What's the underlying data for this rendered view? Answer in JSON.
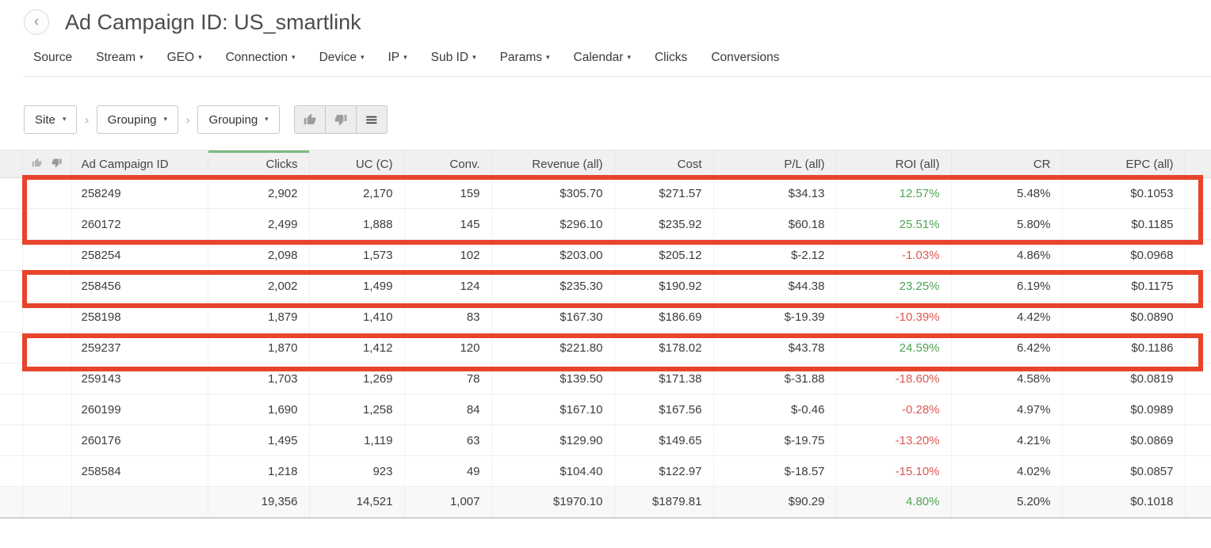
{
  "page": {
    "title": "Ad Campaign ID: US_smartlink",
    "back_icon": "‹"
  },
  "nav": {
    "items": [
      {
        "label": "Source",
        "dropdown": false
      },
      {
        "label": "Stream",
        "dropdown": true
      },
      {
        "label": "GEO",
        "dropdown": true
      },
      {
        "label": "Connection",
        "dropdown": true
      },
      {
        "label": "Device",
        "dropdown": true
      },
      {
        "label": "IP",
        "dropdown": true
      },
      {
        "label": "Sub ID",
        "dropdown": true
      },
      {
        "label": "Params",
        "dropdown": true
      },
      {
        "label": "Calendar",
        "dropdown": true
      },
      {
        "label": "Clicks",
        "dropdown": false
      },
      {
        "label": "Conversions",
        "dropdown": false
      }
    ]
  },
  "toolbar": {
    "dropdowns": [
      "Site",
      "Grouping",
      "Grouping"
    ],
    "icon_buttons": [
      "thumbs-up-icon",
      "thumbs-down-icon",
      "menu-icon"
    ]
  },
  "table": {
    "gutter_icons": [
      "thumbs-up-icon",
      "thumbs-down-icon"
    ],
    "sorted_column": "Clicks",
    "columns": [
      {
        "key": "id",
        "label": "Ad Campaign ID"
      },
      {
        "key": "clicks",
        "label": "Clicks"
      },
      {
        "key": "uc",
        "label": "UC (C)"
      },
      {
        "key": "conv",
        "label": "Conv."
      },
      {
        "key": "revenue",
        "label": "Revenue (all)"
      },
      {
        "key": "cost",
        "label": "Cost"
      },
      {
        "key": "pl",
        "label": "P/L (all)"
      },
      {
        "key": "roi",
        "label": "ROI (all)"
      },
      {
        "key": "cr",
        "label": "CR"
      },
      {
        "key": "epc",
        "label": "EPC (all)"
      }
    ],
    "rows": [
      {
        "id": "258249",
        "clicks": "2,902",
        "uc": "2,170",
        "conv": "159",
        "revenue": "$305.70",
        "cost": "$271.57",
        "pl": "$34.13",
        "roi": "12.57%",
        "cr": "5.48%",
        "epc": "$0.1053"
      },
      {
        "id": "260172",
        "clicks": "2,499",
        "uc": "1,888",
        "conv": "145",
        "revenue": "$296.10",
        "cost": "$235.92",
        "pl": "$60.18",
        "roi": "25.51%",
        "cr": "5.80%",
        "epc": "$0.1185"
      },
      {
        "id": "258254",
        "clicks": "2,098",
        "uc": "1,573",
        "conv": "102",
        "revenue": "$203.00",
        "cost": "$205.12",
        "pl": "$-2.12",
        "roi": "-1.03%",
        "cr": "4.86%",
        "epc": "$0.0968"
      },
      {
        "id": "258456",
        "clicks": "2,002",
        "uc": "1,499",
        "conv": "124",
        "revenue": "$235.30",
        "cost": "$190.92",
        "pl": "$44.38",
        "roi": "23.25%",
        "cr": "6.19%",
        "epc": "$0.1175"
      },
      {
        "id": "258198",
        "clicks": "1,879",
        "uc": "1,410",
        "conv": "83",
        "revenue": "$167.30",
        "cost": "$186.69",
        "pl": "$-19.39",
        "roi": "-10.39%",
        "cr": "4.42%",
        "epc": "$0.0890"
      },
      {
        "id": "259237",
        "clicks": "1,870",
        "uc": "1,412",
        "conv": "120",
        "revenue": "$221.80",
        "cost": "$178.02",
        "pl": "$43.78",
        "roi": "24.59%",
        "cr": "6.42%",
        "epc": "$0.1186"
      },
      {
        "id": "259143",
        "clicks": "1,703",
        "uc": "1,269",
        "conv": "78",
        "revenue": "$139.50",
        "cost": "$171.38",
        "pl": "$-31.88",
        "roi": "-18.60%",
        "cr": "4.58%",
        "epc": "$0.0819"
      },
      {
        "id": "260199",
        "clicks": "1,690",
        "uc": "1,258",
        "conv": "84",
        "revenue": "$167.10",
        "cost": "$167.56",
        "pl": "$-0.46",
        "roi": "-0.28%",
        "cr": "4.97%",
        "epc": "$0.0989"
      },
      {
        "id": "260176",
        "clicks": "1,495",
        "uc": "1,119",
        "conv": "63",
        "revenue": "$129.90",
        "cost": "$149.65",
        "pl": "$-19.75",
        "roi": "-13.20%",
        "cr": "4.21%",
        "epc": "$0.0869"
      },
      {
        "id": "258584",
        "clicks": "1,218",
        "uc": "923",
        "conv": "49",
        "revenue": "$104.40",
        "cost": "$122.97",
        "pl": "$-18.57",
        "roi": "-15.10%",
        "cr": "4.02%",
        "epc": "$0.0857"
      }
    ],
    "totals": {
      "id": "",
      "clicks": "19,356",
      "uc": "14,521",
      "conv": "1,007",
      "revenue": "$1970.10",
      "cost": "$1879.81",
      "pl": "$90.29",
      "roi": "4.80%",
      "cr": "5.20%",
      "epc": "$0.1018"
    }
  },
  "annotations": {
    "color": "#e8432c",
    "boxes": [
      {
        "first_row_index": 0,
        "last_row_index": 1
      },
      {
        "first_row_index": 3,
        "last_row_index": 3
      },
      {
        "first_row_index": 5,
        "last_row_index": 5
      }
    ]
  },
  "colors": {
    "positive": "#4fa555",
    "negative": "#dd5751",
    "sort_indicator": "#7cba7e",
    "highlight": "#e8432c"
  }
}
